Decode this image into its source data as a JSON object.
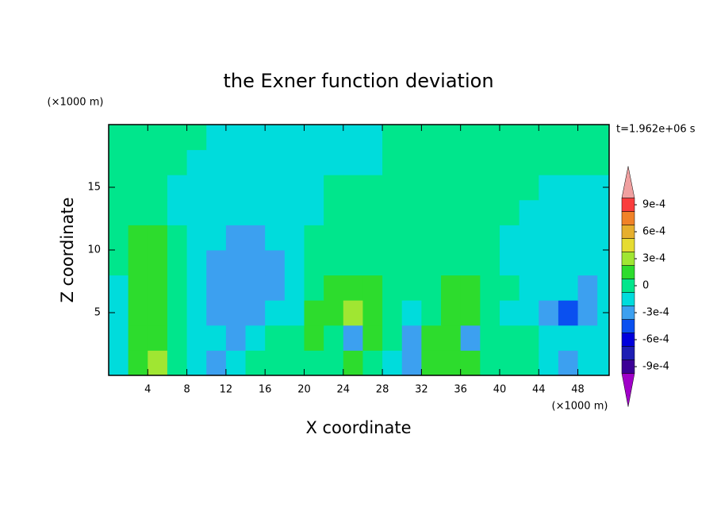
{
  "chart_data": {
    "type": "contour",
    "title": "the Exner function deviation",
    "x_label": "X coordinate",
    "y_label": "Z coordinate",
    "x_unit": "(×1000 m)",
    "y_unit": "(×1000 m)",
    "time_label": "t=1.962e+06 s",
    "xlim": [
      0,
      51.2
    ],
    "ylim": [
      0,
      20
    ],
    "xticks": [
      4,
      8,
      12,
      16,
      20,
      24,
      28,
      32,
      36,
      40,
      44,
      48
    ],
    "yticks": [
      5,
      10,
      15
    ],
    "x": [
      1,
      3,
      5,
      7,
      9,
      11,
      13,
      15,
      17,
      19,
      21,
      23,
      25,
      27,
      29,
      31,
      33,
      35,
      37,
      39,
      41,
      43,
      45,
      47,
      49,
      51
    ],
    "y": [
      1,
      3,
      5,
      7,
      9,
      11,
      13,
      15,
      17,
      19
    ],
    "values": [
      [
        -0.00015,
        0.00015,
        0.0003,
        0,
        -0.00015,
        -0.0003,
        -0.00015,
        0,
        0,
        0,
        0,
        0,
        0.00015,
        0,
        -0.00015,
        -0.0003,
        0.00015,
        0.00015,
        0.00015,
        0,
        0,
        0,
        -0.00015,
        -0.0003,
        -0.00015,
        -0.00015
      ],
      [
        -0.00015,
        0.00015,
        0.00015,
        0,
        -0.00015,
        -0.00015,
        -0.0003,
        -0.00015,
        0,
        0,
        0.00015,
        0,
        -0.0003,
        0.00015,
        0,
        -0.0003,
        0.00015,
        0.00015,
        -0.0003,
        0,
        0,
        0,
        -0.00015,
        -0.00015,
        -0.00015,
        -0.00015
      ],
      [
        -0.00015,
        0.00015,
        0.00015,
        0,
        -0.00015,
        -0.0003,
        -0.0003,
        -0.0003,
        -0.00015,
        -0.00015,
        0.00015,
        0.00015,
        0.0003,
        0.00015,
        0,
        -0.00015,
        0,
        0.00015,
        0.00015,
        0,
        -0.00015,
        -0.00015,
        -0.0003,
        -0.00045,
        -0.0003,
        -0.00015
      ],
      [
        -0.00015,
        0.00015,
        0.00015,
        0,
        -0.00015,
        -0.0003,
        -0.0003,
        -0.0003,
        -0.0003,
        -0.00015,
        0,
        0.00015,
        0.00015,
        0.00015,
        0,
        0,
        0,
        0.00015,
        0.00015,
        0,
        0,
        -0.00015,
        -0.00015,
        -0.00015,
        -0.0003,
        -0.00015
      ],
      [
        0,
        0.00015,
        0.00015,
        0,
        -0.00015,
        -0.0003,
        -0.0003,
        -0.0003,
        -0.0003,
        -0.00015,
        0,
        0,
        0,
        0,
        0,
        0,
        0,
        0,
        0,
        0,
        -0.00015,
        -0.00015,
        -0.00015,
        -0.00015,
        -0.00015,
        -0.00015
      ],
      [
        0,
        0.00015,
        0.00015,
        0,
        -0.00015,
        -0.00015,
        -0.0003,
        -0.0003,
        -0.00015,
        -0.00015,
        0,
        0,
        0,
        0,
        0,
        0,
        0,
        0,
        0,
        0,
        -0.00015,
        -0.00015,
        -0.00015,
        -0.00015,
        -0.00015,
        -0.00015
      ],
      [
        0,
        0,
        0,
        -0.00015,
        -0.00015,
        -0.00015,
        -0.00015,
        -0.00015,
        -0.00015,
        -0.00015,
        -0.00015,
        0,
        0,
        0,
        0,
        0,
        0,
        0,
        0,
        0,
        0,
        -0.00015,
        -0.00015,
        -0.00015,
        -0.00015,
        -0.00015
      ],
      [
        0,
        0,
        0,
        -0.00015,
        -0.00015,
        -0.00015,
        -0.00015,
        -0.00015,
        -0.00015,
        -0.00015,
        -0.00015,
        0,
        0,
        0,
        0,
        0,
        0,
        0,
        0,
        0,
        0,
        0,
        -0.00015,
        -0.00015,
        -0.00015,
        -0.00015
      ],
      [
        0,
        0,
        0,
        0,
        -0.00015,
        -0.00015,
        -0.00015,
        -0.00015,
        -0.00015,
        -0.00015,
        -0.00015,
        -0.00015,
        -0.00015,
        -0.00015,
        0,
        0,
        0,
        0,
        0,
        0,
        0,
        0,
        0,
        0,
        0,
        0
      ],
      [
        0,
        0,
        0,
        0,
        0,
        -0.00015,
        -0.00015,
        -0.00015,
        -0.00015,
        -0.00015,
        -0.00015,
        -0.00015,
        -0.00015,
        -0.00015,
        0,
        0,
        0,
        0,
        0,
        0,
        0,
        0,
        0,
        0,
        0,
        0
      ]
    ],
    "colorbar": {
      "levels": [
        -0.000975,
        -0.000825,
        -0.000675,
        -0.000525,
        -0.000375,
        -0.000225,
        -7.5e-05,
        7.5e-05,
        0.000225,
        0.000375,
        0.000525,
        0.000675,
        0.000825,
        0.000975
      ],
      "colors": [
        "#a000c8",
        "#3c0096",
        "#1e1eb4",
        "#0000dc",
        "#0a50f0",
        "#3ca0f0",
        "#00dcdc",
        "#00e68c",
        "#2ddc2d",
        "#a0e632",
        "#e6dc32",
        "#e6af2d",
        "#f08228",
        "#fa3c3c",
        "#f0a0a0"
      ],
      "ticks": [
        {
          "value": 0.0009,
          "label": "9e-4"
        },
        {
          "value": 0.0006,
          "label": "6e-4"
        },
        {
          "value": 0.0003,
          "label": "3e-4"
        },
        0,
        {
          "value": -0.0003,
          "label": "-3e-4"
        },
        {
          "value": -0.0006,
          "label": "-6e-4"
        },
        {
          "value": -0.0009,
          "label": "-9e-4"
        }
      ]
    }
  }
}
